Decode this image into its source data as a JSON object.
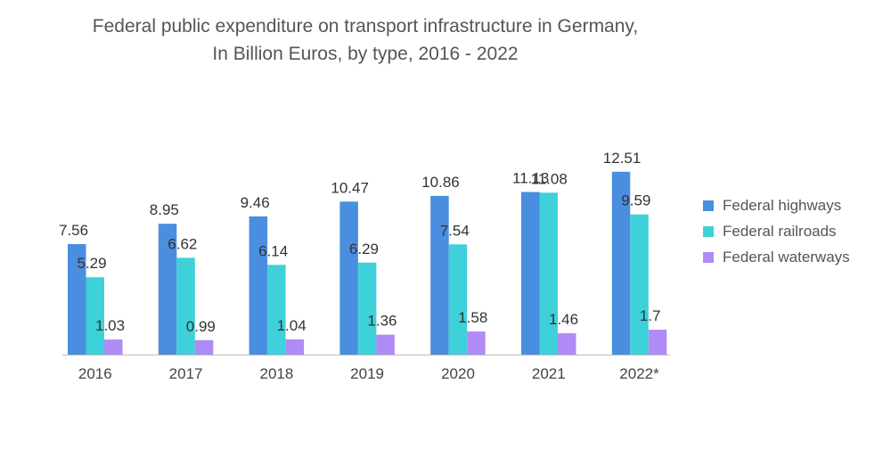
{
  "chart_data": {
    "type": "bar",
    "title": "Federal public expenditure on transport infrastructure in Germany,",
    "subtitle": "In Billion Euros, by type, 2016 - 2022",
    "categories": [
      "2016",
      "2017",
      "2018",
      "2019",
      "2020",
      "2021",
      "2022*"
    ],
    "series": [
      {
        "name": "Federal highways",
        "color": "#4a8ee0",
        "values": [
          7.56,
          8.95,
          9.46,
          10.47,
          10.86,
          11.13,
          12.51
        ],
        "labels": [
          "7.56",
          "8.95",
          "9.46",
          "10.47",
          "10.86",
          "11.13",
          "12.51"
        ]
      },
      {
        "name": "Federal railroads",
        "color": "#3ed1d9",
        "values": [
          5.29,
          6.62,
          6.14,
          6.29,
          7.54,
          11.08,
          9.59
        ],
        "labels": [
          "5.29",
          "6.62",
          "6.14",
          "6.29",
          "7.54",
          "11.08",
          "9.59"
        ]
      },
      {
        "name": "Federal waterways",
        "color": "#b08af5",
        "values": [
          1.03,
          0.99,
          1.04,
          1.36,
          1.58,
          1.46,
          1.7
        ],
        "labels": [
          "1.03",
          "0.99",
          "1.04",
          "1.36",
          "1.58",
          "1.46",
          "1.7"
        ]
      }
    ],
    "xlabel": "",
    "ylabel": "",
    "ylim": [
      0,
      14
    ],
    "grid": false,
    "legend": "right"
  }
}
